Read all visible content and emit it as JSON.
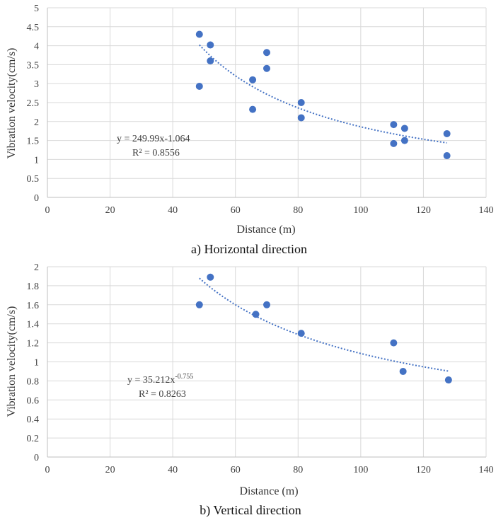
{
  "chart_data": [
    {
      "type": "scatter",
      "caption": "a) Horizontal direction",
      "xlabel": "Distance (m)",
      "ylabel": "Vibration velocity(cm/s)",
      "xlim": [
        0,
        140
      ],
      "ylim": [
        0,
        5
      ],
      "xticks": [
        0,
        20,
        40,
        60,
        80,
        100,
        120,
        140
      ],
      "yticks": [
        0,
        0.5,
        1,
        1.5,
        2,
        2.5,
        3,
        3.5,
        4,
        4.5,
        5
      ],
      "xtick_labels": [
        "0",
        "20",
        "40",
        "60",
        "80",
        "100",
        "120",
        "140"
      ],
      "ytick_labels": [
        "0",
        "0.5",
        "1",
        "1.5",
        "2",
        "2.5",
        "3",
        "3.5",
        "4",
        "4.5",
        "5"
      ],
      "grid": true,
      "marker_color": "#4472c4",
      "trend_color": "#4472c4",
      "points": [
        {
          "x": 48.5,
          "y": 4.3
        },
        {
          "x": 48.5,
          "y": 2.93
        },
        {
          "x": 52,
          "y": 4.02
        },
        {
          "x": 52,
          "y": 3.6
        },
        {
          "x": 65.5,
          "y": 3.1
        },
        {
          "x": 65.5,
          "y": 2.32
        },
        {
          "x": 70,
          "y": 3.82
        },
        {
          "x": 70,
          "y": 3.4
        },
        {
          "x": 81,
          "y": 2.5
        },
        {
          "x": 81,
          "y": 2.1
        },
        {
          "x": 110.5,
          "y": 1.92
        },
        {
          "x": 110.5,
          "y": 1.42
        },
        {
          "x": 114,
          "y": 1.82
        },
        {
          "x": 114,
          "y": 1.5
        },
        {
          "x": 127.5,
          "y": 1.68
        },
        {
          "x": 127.5,
          "y": 1.1
        }
      ],
      "trendline": {
        "kind": "power",
        "coefficient": 249.99,
        "exponent": -1.064,
        "x_range": [
          48.5,
          127.5
        ],
        "equation_label": "y = 249.99x-1.064",
        "r2_label": "R² = 0.8556"
      }
    },
    {
      "type": "scatter",
      "caption": "b) Vertical direction",
      "xlabel": "Distance (m)",
      "ylabel": "Vibration velocity(cm/s)",
      "xlim": [
        0,
        140
      ],
      "ylim": [
        0,
        2
      ],
      "xticks": [
        0,
        20,
        40,
        60,
        80,
        100,
        120,
        140
      ],
      "yticks": [
        0,
        0.2,
        0.4,
        0.6,
        0.8,
        1,
        1.2,
        1.4,
        1.6,
        1.8,
        2
      ],
      "xtick_labels": [
        "0",
        "20",
        "40",
        "60",
        "80",
        "100",
        "120",
        "140"
      ],
      "ytick_labels": [
        "0",
        "0.2",
        "0.4",
        "0.6",
        "0.8",
        "1",
        "1.2",
        "1.4",
        "1.6",
        "1.8",
        "2"
      ],
      "grid": true,
      "marker_color": "#4472c4",
      "trend_color": "#4472c4",
      "points": [
        {
          "x": 48.5,
          "y": 1.6
        },
        {
          "x": 52,
          "y": 1.89
        },
        {
          "x": 66.5,
          "y": 1.5
        },
        {
          "x": 70,
          "y": 1.6
        },
        {
          "x": 81,
          "y": 1.3
        },
        {
          "x": 110.5,
          "y": 1.2
        },
        {
          "x": 113.5,
          "y": 0.9
        },
        {
          "x": 128,
          "y": 0.81
        }
      ],
      "trendline": {
        "kind": "power",
        "coefficient": 35.212,
        "exponent": -0.755,
        "x_range": [
          48.5,
          128
        ],
        "equation_label": "y = 35.212x",
        "equation_exponent_label": "-0.755",
        "r2_label": "R² = 0.8263"
      }
    }
  ]
}
